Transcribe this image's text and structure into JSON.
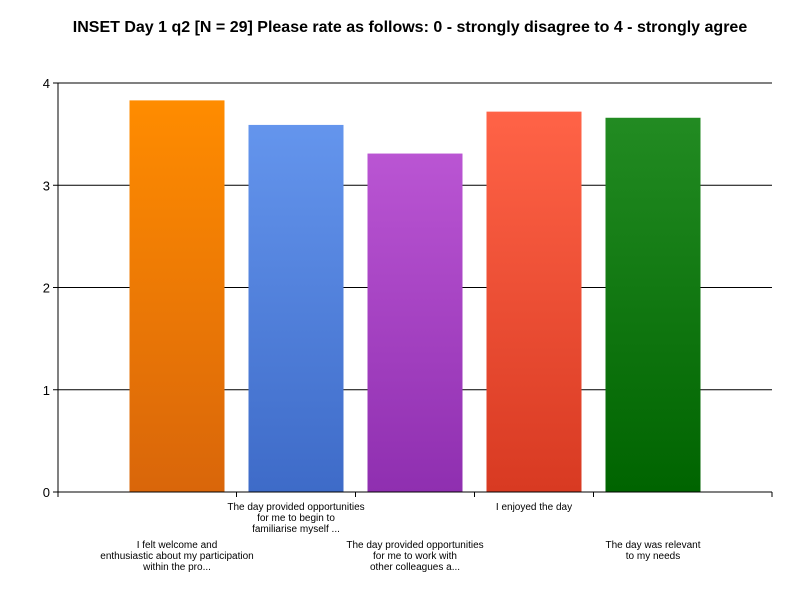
{
  "chart_data": {
    "type": "bar",
    "title": "INSET Day 1 q2  [N = 29]   Please rate as follows: 0 - strongly disagree to 4 - strongly agree",
    "xlabel": "",
    "ylabel": "",
    "ylim": [
      0,
      4
    ],
    "yticks": [
      "0",
      "1",
      "2",
      "3",
      "4"
    ],
    "grid": true,
    "legend": "none",
    "categories": [
      "I felt welcome and enthusiastic about my participation within the pro...",
      "The day provided opportunities for me to begin to familiarise myself ...",
      "The day provided opportunities for me to work with other colleagues a...",
      "I enjoyed the day",
      "The day was relevant to my needs"
    ],
    "category_lines": [
      [
        "I felt welcome and",
        "enthusiastic about my participation",
        "within the pro..."
      ],
      [
        "The day provided opportunities",
        "for me to begin to",
        "familiarise myself ..."
      ],
      [
        "The day provided opportunities",
        "for me to work with",
        "other colleagues a..."
      ],
      [
        "I enjoyed the day"
      ],
      [
        "The day was relevant",
        "to my needs"
      ]
    ],
    "values": [
      3.83,
      3.59,
      3.31,
      3.72,
      3.66
    ],
    "colors": [
      [
        "#ff8c00",
        "#d9660a"
      ],
      [
        "#6495ed",
        "#3e6bc8"
      ],
      [
        "#ba55d3",
        "#8f2fb0"
      ],
      [
        "#ff6347",
        "#d83a22"
      ],
      [
        "#228b22",
        "#006400"
      ]
    ]
  }
}
